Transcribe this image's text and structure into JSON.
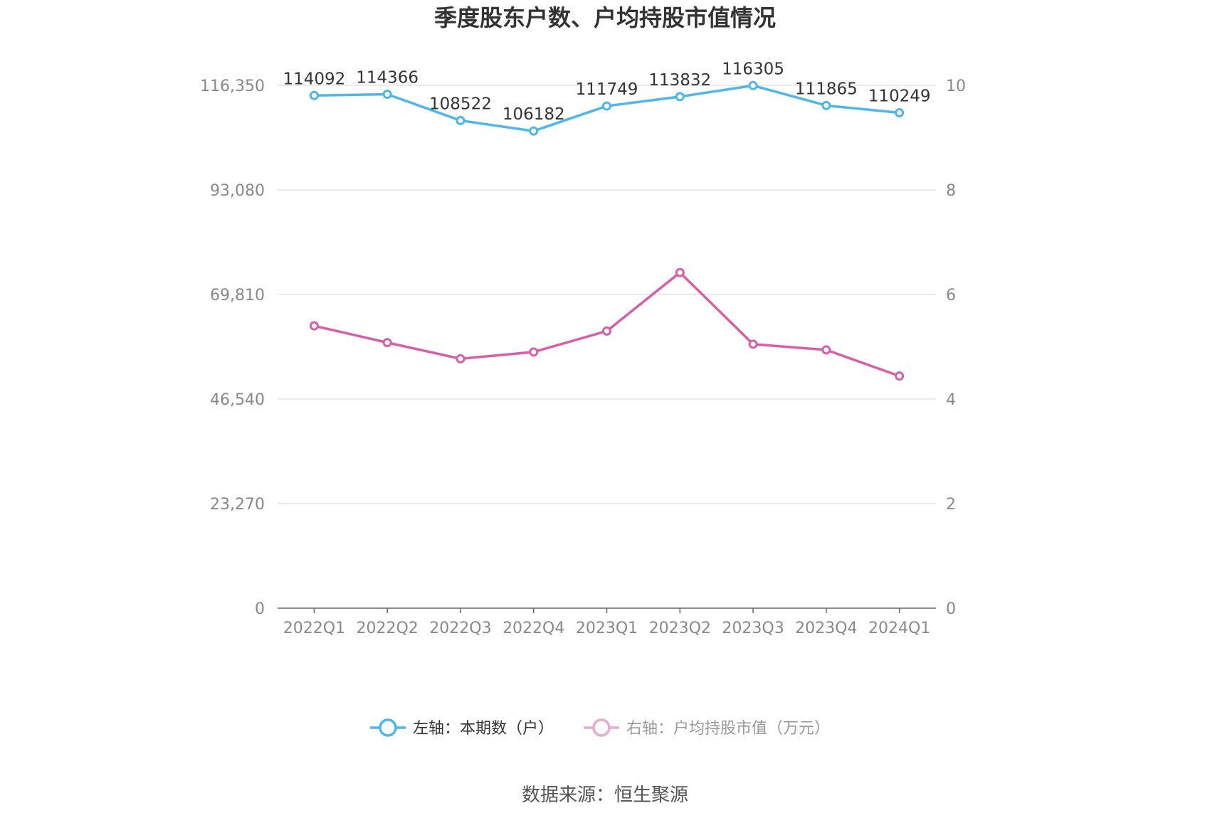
{
  "title": "季度股东户数、户均持股市值情况",
  "source": "数据来源：恒生聚源",
  "colors": {
    "left_series": "#4db6ec",
    "right_series": "#d65fa9",
    "grid": "#e0e3ea",
    "axis": "#666666"
  },
  "chart_data": {
    "type": "line",
    "title": "季度股东户数、户均持股市值情况",
    "categories": [
      "2022Q1",
      "2022Q2",
      "2022Q3",
      "2022Q4",
      "2023Q1",
      "2023Q2",
      "2023Q3",
      "2023Q4",
      "2024Q1"
    ],
    "left_axis": {
      "ylim": [
        0,
        116350
      ],
      "ticks": [
        "0",
        "23,270",
        "46,540",
        "69,810",
        "93,080",
        "116,350"
      ]
    },
    "right_axis": {
      "ylim": [
        0,
        10
      ],
      "ticks": [
        "0",
        "2",
        "4",
        "6",
        "8",
        "10"
      ]
    },
    "series": [
      {
        "name": "左轴：本期数（户）",
        "axis": "left",
        "color": "#4db6ec",
        "values": [
          114092,
          114366,
          108522,
          106182,
          111749,
          113832,
          116305,
          111865,
          110249
        ],
        "labels": [
          "114092",
          "114366",
          "108522",
          "106182",
          "111749",
          "113832",
          "116305",
          "111865",
          "110249"
        ]
      },
      {
        "name": "右轴：户均持股市值（万元）",
        "axis": "right",
        "color": "#d65fa9",
        "values": [
          5.4,
          5.08,
          4.77,
          4.9,
          5.3,
          6.42,
          5.05,
          4.94,
          4.44
        ]
      }
    ],
    "grid": true,
    "legend_position": "bottom"
  }
}
